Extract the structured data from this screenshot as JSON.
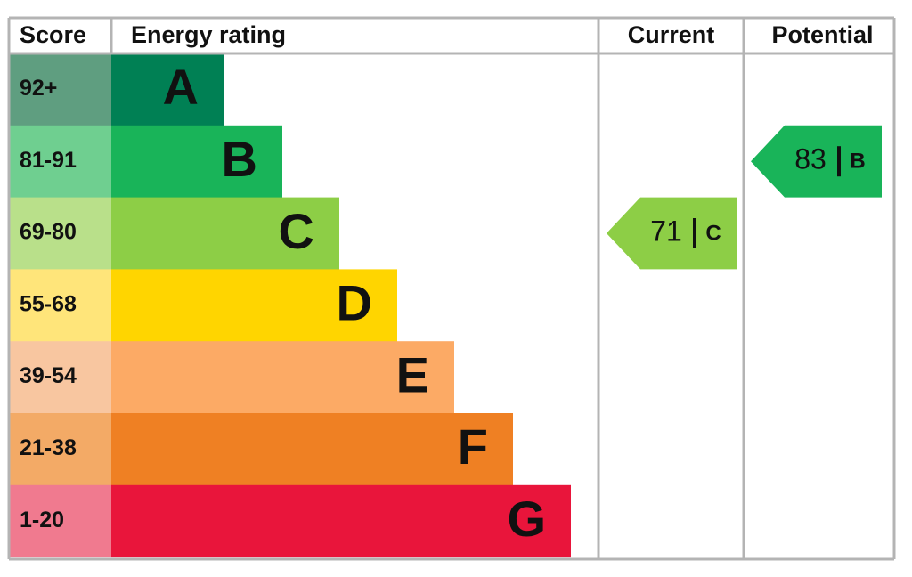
{
  "header": {
    "score": "Score",
    "rating": "Energy rating",
    "current": "Current",
    "potential": "Potential"
  },
  "bands": [
    {
      "score": "92+",
      "letter": "A",
      "color": "#008054",
      "score_color": "#5f9e80"
    },
    {
      "score": "81-91",
      "letter": "B",
      "color": "#19b459",
      "score_color": "#6fcf90"
    },
    {
      "score": "69-80",
      "letter": "C",
      "color": "#8dce46",
      "score_color": "#b9e08a"
    },
    {
      "score": "55-68",
      "letter": "D",
      "color": "#ffd500",
      "score_color": "#ffe57a"
    },
    {
      "score": "39-54",
      "letter": "E",
      "color": "#fcaa65",
      "score_color": "#f8c6a0"
    },
    {
      "score": "21-38",
      "letter": "F",
      "color": "#ef8023",
      "score_color": "#f3aa66"
    },
    {
      "score": "1-20",
      "letter": "G",
      "color": "#e9153b",
      "score_color": "#f07a8f"
    }
  ],
  "current": {
    "value": 71,
    "rating": "C"
  },
  "potential": {
    "value": 83,
    "rating": "B"
  }
}
